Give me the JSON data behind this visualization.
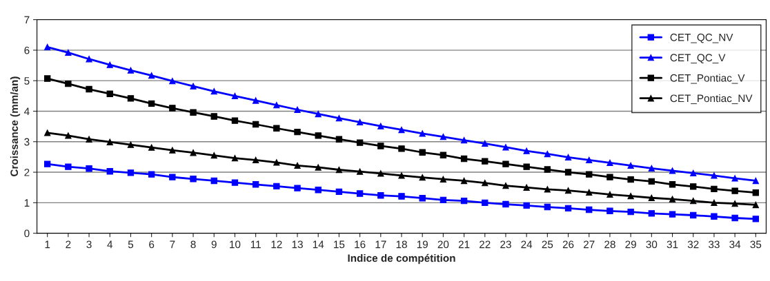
{
  "chart_data": {
    "type": "line",
    "xlabel": "Indice de compétition",
    "ylabel": "Croissance (mm/an)",
    "categories": [
      "1",
      "2",
      "3",
      "4",
      "5",
      "6",
      "7",
      "8",
      "9",
      "10",
      "11",
      "12",
      "13",
      "14",
      "15",
      "16",
      "17",
      "18",
      "19",
      "20",
      "21",
      "22",
      "23",
      "24",
      "25",
      "26",
      "27",
      "28",
      "29",
      "30",
      "31",
      "32",
      "33",
      "34",
      "35"
    ],
    "series": [
      {
        "name": "CET_QC_NV",
        "color": "#0000ff",
        "marker": "square",
        "values": [
          2.27,
          2.18,
          2.12,
          2.03,
          1.98,
          1.93,
          1.84,
          1.78,
          1.72,
          1.66,
          1.6,
          1.54,
          1.48,
          1.42,
          1.36,
          1.3,
          1.24,
          1.21,
          1.15,
          1.09,
          1.06,
          1.0,
          0.95,
          0.91,
          0.86,
          0.82,
          0.77,
          0.73,
          0.7,
          0.65,
          0.62,
          0.59,
          0.55,
          0.5,
          0.47
        ]
      },
      {
        "name": "CET_QC_V",
        "color": "#0000ff",
        "marker": "triangle",
        "values": [
          6.1,
          5.92,
          5.71,
          5.52,
          5.34,
          5.17,
          4.99,
          4.82,
          4.65,
          4.5,
          4.35,
          4.2,
          4.05,
          3.91,
          3.77,
          3.64,
          3.51,
          3.39,
          3.27,
          3.16,
          3.05,
          2.94,
          2.82,
          2.7,
          2.6,
          2.49,
          2.4,
          2.31,
          2.22,
          2.13,
          2.05,
          1.97,
          1.89,
          1.8,
          1.72
        ]
      },
      {
        "name": "CET_Pontiac_V",
        "color": "#000000",
        "marker": "square",
        "values": [
          5.07,
          4.9,
          4.72,
          4.57,
          4.42,
          4.25,
          4.1,
          3.96,
          3.83,
          3.69,
          3.57,
          3.44,
          3.32,
          3.2,
          3.08,
          2.97,
          2.86,
          2.77,
          2.65,
          2.56,
          2.44,
          2.36,
          2.27,
          2.18,
          2.09,
          2.0,
          1.93,
          1.84,
          1.76,
          1.7,
          1.6,
          1.53,
          1.45,
          1.39,
          1.33
        ]
      },
      {
        "name": "CET_Pontiac_NV",
        "color": "#000000",
        "marker": "triangle",
        "values": [
          3.29,
          3.2,
          3.08,
          2.99,
          2.9,
          2.81,
          2.72,
          2.64,
          2.55,
          2.46,
          2.4,
          2.32,
          2.22,
          2.16,
          2.08,
          2.02,
          1.96,
          1.89,
          1.83,
          1.77,
          1.72,
          1.65,
          1.56,
          1.5,
          1.44,
          1.4,
          1.34,
          1.27,
          1.22,
          1.16,
          1.12,
          1.06,
          1.0,
          0.97,
          0.93
        ]
      }
    ],
    "ylim": [
      0,
      7
    ],
    "yticks": [
      0,
      1,
      2,
      3,
      4,
      5,
      6,
      7
    ],
    "grid": "y",
    "legend": "top right",
    "line_style": "solid"
  }
}
